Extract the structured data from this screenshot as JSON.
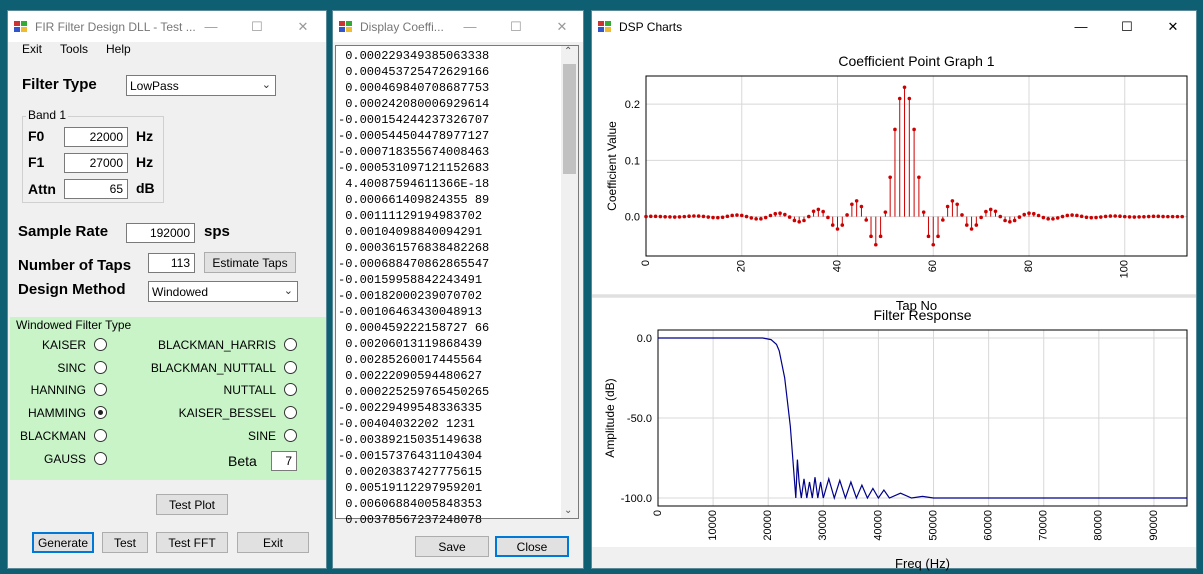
{
  "filter_window": {
    "title": "FIR Filter Design DLL - Test ...",
    "menu": [
      "Exit",
      "Tools",
      "Help"
    ],
    "filter_type_label": "Filter Type",
    "filter_type_value": "LowPass",
    "band_group_label": "Band 1",
    "f0_label": "F0",
    "f0_value": "22000",
    "f0_unit": "Hz",
    "f1_label": "F1",
    "f1_value": "27000",
    "f1_unit": "Hz",
    "attn_label": "Attn",
    "attn_value": "65",
    "attn_unit": "dB",
    "sample_rate_label": "Sample Rate",
    "sample_rate_value": "192000",
    "sample_rate_unit": "sps",
    "taps_label": "Number of Taps",
    "taps_value": "113",
    "estimate_taps_label": "Estimate Taps",
    "design_method_label": "Design Method",
    "design_method_value": "Windowed",
    "windowed_group_label": "Windowed Filter Type",
    "left_radios": [
      "KAISER",
      "SINC",
      "HANNING",
      "HAMMING",
      "BLACKMAN",
      "GAUSS"
    ],
    "right_radios": [
      "BLACKMAN_HARRIS",
      "BLACKMAN_NUTTALL",
      "NUTTALL",
      "KAISER_BESSEL",
      "SINE"
    ],
    "selected_radio": "HAMMING",
    "beta_label": "Beta",
    "beta_value": "7",
    "test_plot_label": "Test Plot",
    "generate_label": "Generate",
    "test_label": "Test",
    "test_fft_label": "Test FFT",
    "exit_label": "Exit"
  },
  "coeff_window": {
    "title": "Display Coeffi...",
    "lines": [
      " 0.000229349385063338",
      " 0.000453725472629166",
      " 0.000469840708687753",
      " 0.000242080006929614",
      "-0.000154244237326707",
      "-0.000544504478977127",
      "-0.000718355674008463",
      "-0.000531097121152683",
      " 4.40087594611366E-18",
      " 0.000661409824355 89",
      " 0.00111129194983702",
      " 0.00104098840094291",
      " 0.000361576838482268",
      "-0.000688470862865547",
      "-0.00159958842243491",
      "-0.00182000239070702",
      "-0.00106463430048913",
      " 0.000459222158727 66",
      " 0.00206013119868439",
      " 0.00285260017445564",
      " 0.00222090594480627",
      " 0.000225259765450265",
      "-0.00229499548336335",
      "-0.00404032202 1231",
      "-0.00389215035149638",
      "-0.00157376431104304",
      " 0.00203837427775615",
      " 0.00519112297959201",
      " 0.00606884005848353",
      " 0.00378567237248078"
    ],
    "save_label": "Save",
    "close_label": "Close"
  },
  "charts_window": {
    "title": "DSP Charts"
  },
  "chart_data": [
    {
      "type": "scatter",
      "title": "Coefficient Point Graph 1",
      "xlabel": "Tap No",
      "ylabel": "Coefficient Value",
      "xlim": [
        0,
        113
      ],
      "ylim": [
        -0.07,
        0.25
      ],
      "xticks": [
        0,
        20,
        40,
        60,
        80,
        100
      ],
      "yticks": [
        0.0,
        0.1,
        0.2
      ],
      "ytick_labels": [
        "0.0",
        "0.1",
        "0.2"
      ],
      "grid": true,
      "color": "#cc0000",
      "series": [
        {
          "x": [
            0,
            1,
            2,
            3,
            4,
            5,
            6,
            7,
            8,
            9,
            10,
            11,
            12,
            13,
            14,
            15,
            16,
            17,
            18,
            19,
            20,
            21,
            22,
            23,
            24,
            25,
            26,
            27,
            28,
            29,
            30,
            31,
            32,
            33,
            34,
            35,
            36,
            37,
            38,
            39,
            40,
            41,
            42,
            43,
            44,
            45,
            46,
            47,
            48,
            49,
            50,
            51,
            52,
            53,
            54,
            55,
            56,
            57,
            58,
            59,
            60,
            61,
            62,
            63,
            64,
            65,
            66,
            67,
            68,
            69,
            70,
            71,
            72,
            73,
            74,
            75,
            76,
            77,
            78,
            79,
            80,
            81,
            82,
            83,
            84,
            85,
            86,
            87,
            88,
            89,
            90,
            91,
            92,
            93,
            94,
            95,
            96,
            97,
            98,
            99,
            100,
            101,
            102,
            103,
            104,
            105,
            106,
            107,
            108,
            109,
            110,
            111,
            112
          ],
          "y": [
            0.0002,
            0.0005,
            0.0005,
            0.0002,
            -0.0002,
            -0.0005,
            -0.0007,
            -0.0005,
            0.0,
            0.0007,
            0.0011,
            0.001,
            0.0004,
            -0.0007,
            -0.0016,
            -0.0018,
            -0.0011,
            0.0005,
            0.0021,
            0.0029,
            0.0022,
            0.0002,
            -0.0023,
            -0.004,
            -0.0039,
            -0.0016,
            0.002,
            0.0052,
            0.0061,
            0.0038,
            -0.0008,
            -0.0068,
            -0.0092,
            -0.0069,
            0.0001,
            0.0095,
            0.0128,
            0.009,
            -0.0015,
            -0.015,
            -0.022,
            -0.015,
            0.003,
            0.022,
            0.028,
            0.018,
            -0.006,
            -0.035,
            -0.05,
            -0.035,
            0.008,
            0.07,
            0.155,
            0.21,
            0.23,
            0.21,
            0.155,
            0.07,
            0.008,
            -0.035,
            -0.05,
            -0.035,
            -0.006,
            0.018,
            0.028,
            0.022,
            0.003,
            -0.015,
            -0.022,
            -0.015,
            -0.0015,
            0.009,
            0.0128,
            0.0095,
            0.0001,
            -0.0069,
            -0.0092,
            -0.0068,
            -0.0008,
            0.0038,
            0.0061,
            0.0052,
            0.002,
            -0.0016,
            -0.0039,
            -0.004,
            -0.0023,
            0.0002,
            0.0022,
            0.0029,
            0.0021,
            0.0005,
            -0.0011,
            -0.0018,
            -0.0016,
            -0.0007,
            0.0004,
            0.001,
            0.0011,
            0.0007,
            0.0,
            -0.0005,
            -0.0007,
            -0.0005,
            -0.0002,
            0.0002,
            0.0005,
            0.0005,
            0.0002,
            0.0,
            0.0,
            0.0,
            0.0
          ]
        }
      ]
    },
    {
      "type": "line",
      "title": "Filter Response",
      "xlabel": "Freq (Hz)",
      "ylabel": "Amplitude (dB)",
      "xlim": [
        0,
        96000
      ],
      "ylim": [
        -105,
        5
      ],
      "xticks": [
        0,
        10000,
        20000,
        30000,
        40000,
        50000,
        60000,
        70000,
        80000,
        90000
      ],
      "yticks": [
        0,
        -50,
        -100
      ],
      "ytick_labels": [
        "0.0",
        "-50.0",
        "-100.0"
      ],
      "grid": true,
      "color": "#00008b",
      "series": [
        {
          "x": [
            0,
            5000,
            10000,
            15000,
            19000,
            20500,
            21500,
            22000,
            23000,
            24000,
            25000,
            25300,
            25600,
            26000,
            26500,
            27000,
            27500,
            28000,
            28500,
            29000,
            29500,
            30000,
            31000,
            32000,
            33000,
            34000,
            35000,
            36000,
            37000,
            38000,
            39000,
            40000,
            41000,
            42000,
            44000,
            46000,
            48000,
            50000,
            60000,
            70000,
            80000,
            90000,
            96000
          ],
          "y": [
            0,
            0,
            0,
            0,
            0,
            -1,
            -4,
            -8,
            -25,
            -55,
            -100,
            -76,
            -90,
            -100,
            -88,
            -100,
            -90,
            -100,
            -87,
            -100,
            -90,
            -100,
            -88,
            -100,
            -89,
            -100,
            -90,
            -100,
            -92,
            -100,
            -94,
            -100,
            -95,
            -100,
            -97,
            -100,
            -99,
            -100,
            -100,
            -100,
            -100,
            -100,
            -100
          ]
        }
      ]
    }
  ]
}
